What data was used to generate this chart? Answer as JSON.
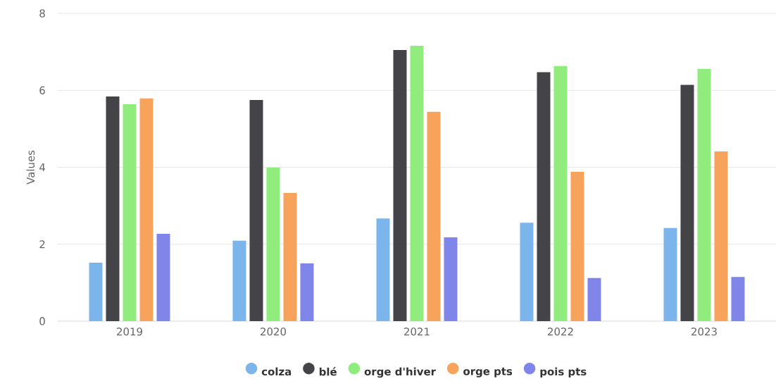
{
  "chart_data": {
    "type": "bar",
    "ylabel": "Values",
    "categories": [
      "2019",
      "2020",
      "2021",
      "2022",
      "2023"
    ],
    "series": [
      {
        "name": "colza",
        "color": "#7cb5ec",
        "values": [
          1.52,
          2.09,
          2.67,
          2.56,
          2.42
        ]
      },
      {
        "name": "blé",
        "color": "#434348",
        "values": [
          5.84,
          5.75,
          7.05,
          6.47,
          6.14
        ]
      },
      {
        "name": "orge d'hiver",
        "color": "#90ed7d",
        "values": [
          5.64,
          3.99,
          7.16,
          6.63,
          6.56
        ]
      },
      {
        "name": "orge pts",
        "color": "#f7a35c",
        "values": [
          5.79,
          3.33,
          5.44,
          3.88,
          4.41
        ]
      },
      {
        "name": "pois pts",
        "color": "#8085e9",
        "values": [
          2.27,
          1.5,
          2.18,
          1.12,
          1.15
        ]
      }
    ],
    "ylim": [
      0,
      8
    ],
    "yticks": [
      0,
      2,
      4,
      6,
      8
    ],
    "grid": "y",
    "legend": "bottom",
    "marker": "circle"
  }
}
